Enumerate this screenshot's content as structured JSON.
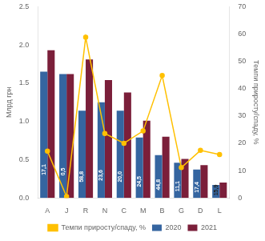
{
  "chart_data": {
    "type": "bar",
    "categories": [
      "A",
      "J",
      "R",
      "N",
      "C",
      "M",
      "B",
      "G",
      "D",
      "L"
    ],
    "series": [
      {
        "name": "2020",
        "color": "#3565A0",
        "values": [
          1.65,
          1.62,
          1.14,
          1.25,
          1.14,
          0.79,
          0.56,
          0.46,
          0.37,
          0.17
        ]
      },
      {
        "name": "2021",
        "color": "#7B1F3A",
        "values": [
          1.93,
          1.62,
          1.81,
          1.54,
          1.38,
          1.01,
          0.8,
          0.51,
          0.43,
          0.2
        ]
      },
      {
        "name": "Темпи приросту/спаду, %",
        "type": "line",
        "axis": "y2",
        "color": "#FFC000",
        "marker": "circle",
        "values": [
          17.1,
          0.5,
          58.8,
          23.6,
          20.0,
          24.5,
          44.8,
          11.1,
          17.4,
          15.9
        ],
        "value_labels": [
          "17,1",
          "0,5",
          "58,8",
          "23,6",
          "20,0",
          "24,5",
          "44,8",
          "11,1",
          "17,4",
          "15,9"
        ]
      }
    ],
    "ylabel": "Млрд грн",
    "y2label": "Темпи приросту/спаду, %",
    "ylim": [
      0,
      2.5
    ],
    "yticks": [
      {
        "value": 0,
        "label": "0.0"
      },
      0.5,
      {
        "value": 1.0,
        "label": "1.0"
      },
      1.5,
      {
        "value": 2.0,
        "label": "2.0"
      },
      2.5
    ],
    "y2lim": [
      0,
      70
    ],
    "y2ticks": [
      0,
      10,
      20,
      30,
      40,
      50,
      60,
      70
    ],
    "grid": false,
    "legend": "bottom"
  }
}
